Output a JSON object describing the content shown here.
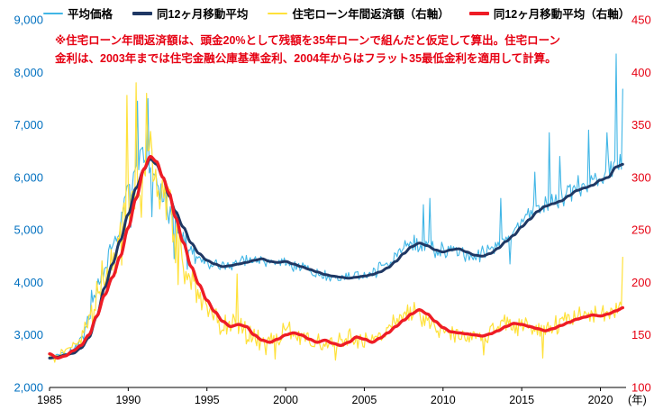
{
  "note": {
    "line1": "※住宅ローン年間返済額は、頭金20%として残額を35年ローンで組んだと仮定して算出。住宅ローン",
    "line2": "金利は、2003年までは住宅金融公庫基準金利、2004年からはフラット35最低金利を適用して計算。",
    "color": "#e60012"
  },
  "chart_data": {
    "type": "line",
    "noise_seed": 9,
    "x_axis": {
      "range": [
        1985,
        2021.63
      ],
      "ticks": [
        1985,
        1990,
        1995,
        2000,
        2005,
        2010,
        2015,
        2020
      ],
      "unit_label": "(年)",
      "color": "#000000"
    },
    "y_left": {
      "range": [
        2000,
        9000
      ],
      "tick_values": [
        2000,
        3000,
        4000,
        5000,
        6000,
        7000,
        8000,
        9000
      ],
      "tick_labels": [
        "2,000",
        "3,000",
        "4,000",
        "5,000",
        "6,000",
        "7,000",
        "8,000",
        "9,000"
      ],
      "color": "#0070c0"
    },
    "y_right": {
      "range": [
        100,
        450
      ],
      "tick_values": [
        100,
        150,
        200,
        250,
        300,
        350,
        400,
        450
      ],
      "tick_labels": [
        "100",
        "150",
        "200",
        "250",
        "300",
        "350",
        "400",
        "450"
      ],
      "color": "#e60012"
    },
    "series": [
      {
        "name": "平均価格",
        "slug": "avg-price",
        "axis": "left",
        "color": "#41b6e6",
        "stroke_width": 1.1,
        "style": "noisy-monthly",
        "derived_from": "同12ヶ月移動平均",
        "lead_years": 0.4,
        "clamp": [
          2330,
          8460
        ],
        "noise_amp_points": [
          [
            1985,
            60
          ],
          [
            1986.5,
            90
          ],
          [
            1987.5,
            200
          ],
          [
            1988.5,
            320
          ],
          [
            1990,
            380
          ],
          [
            1991.5,
            380
          ],
          [
            1992.5,
            320
          ],
          [
            1994,
            220
          ],
          [
            1995,
            150
          ],
          [
            1997,
            140
          ],
          [
            2000,
            140
          ],
          [
            2003,
            130
          ],
          [
            2005,
            140
          ],
          [
            2007,
            180
          ],
          [
            2008.5,
            220
          ],
          [
            2010,
            170
          ],
          [
            2012,
            150
          ],
          [
            2013,
            170
          ],
          [
            2015,
            200
          ],
          [
            2017,
            230
          ],
          [
            2019,
            260
          ],
          [
            2020,
            280
          ],
          [
            2021.45,
            300
          ]
        ],
        "spikes": [
          [
            1987.67,
            3850
          ],
          [
            1990.17,
            5050
          ],
          [
            1990.58,
            7450
          ],
          [
            1991.25,
            7500
          ],
          [
            1991.5,
            5250
          ],
          [
            1992.9,
            4450
          ],
          [
            1993.75,
            4250
          ],
          [
            2008.75,
            5480
          ],
          [
            2009.17,
            5600
          ],
          [
            2013.67,
            5600
          ],
          [
            2014.25,
            4350
          ],
          [
            2015.83,
            6100
          ],
          [
            2016.75,
            6850
          ],
          [
            2017.42,
            6400
          ],
          [
            2019.25,
            6900
          ],
          [
            2020.42,
            6850
          ],
          [
            2021.0,
            8350
          ],
          [
            2021.2,
            6150
          ],
          [
            2021.42,
            7680
          ]
        ]
      },
      {
        "name": "同12ヶ月移動平均",
        "slug": "avg-price-12mo-ma",
        "axis": "left",
        "color": "#1f3864",
        "stroke_width": 3,
        "style": "smooth",
        "points": [
          [
            1985,
            2560
          ],
          [
            1985.5,
            2580
          ],
          [
            1986,
            2620
          ],
          [
            1986.5,
            2650
          ],
          [
            1987,
            2750
          ],
          [
            1987.5,
            2950
          ],
          [
            1988,
            3350
          ],
          [
            1988.5,
            3900
          ],
          [
            1989,
            4350
          ],
          [
            1989.5,
            4800
          ],
          [
            1990,
            5300
          ],
          [
            1990.5,
            5800
          ],
          [
            1991,
            6150
          ],
          [
            1991.4,
            6350
          ],
          [
            1991.8,
            6250
          ],
          [
            1992.2,
            6000
          ],
          [
            1992.6,
            5650
          ],
          [
            1993,
            5350
          ],
          [
            1993.5,
            5050
          ],
          [
            1994,
            4750
          ],
          [
            1994.5,
            4550
          ],
          [
            1995,
            4420
          ],
          [
            1995.5,
            4350
          ],
          [
            1996,
            4300
          ],
          [
            1996.5,
            4320
          ],
          [
            1997,
            4350
          ],
          [
            1997.5,
            4380
          ],
          [
            1998,
            4420
          ],
          [
            1998.5,
            4450
          ],
          [
            1999,
            4400
          ],
          [
            1999.5,
            4380
          ],
          [
            2000,
            4400
          ],
          [
            2000.5,
            4350
          ],
          [
            2001,
            4300
          ],
          [
            2001.5,
            4250
          ],
          [
            2002,
            4200
          ],
          [
            2002.5,
            4150
          ],
          [
            2003,
            4120
          ],
          [
            2003.5,
            4100
          ],
          [
            2004,
            4080
          ],
          [
            2004.5,
            4100
          ],
          [
            2005,
            4120
          ],
          [
            2005.5,
            4150
          ],
          [
            2006,
            4200
          ],
          [
            2006.5,
            4280
          ],
          [
            2007,
            4400
          ],
          [
            2007.5,
            4550
          ],
          [
            2008,
            4680
          ],
          [
            2008.5,
            4750
          ],
          [
            2009,
            4700
          ],
          [
            2009.5,
            4620
          ],
          [
            2010,
            4580
          ],
          [
            2010.5,
            4620
          ],
          [
            2011,
            4640
          ],
          [
            2011.5,
            4580
          ],
          [
            2012,
            4520
          ],
          [
            2012.5,
            4500
          ],
          [
            2013,
            4550
          ],
          [
            2013.5,
            4650
          ],
          [
            2014,
            4780
          ],
          [
            2014.5,
            4900
          ],
          [
            2015,
            5060
          ],
          [
            2015.5,
            5200
          ],
          [
            2016,
            5350
          ],
          [
            2016.5,
            5450
          ],
          [
            2017,
            5500
          ],
          [
            2017.5,
            5550
          ],
          [
            2018,
            5650
          ],
          [
            2018.5,
            5750
          ],
          [
            2019,
            5800
          ],
          [
            2019.5,
            5850
          ],
          [
            2020,
            5950
          ],
          [
            2020.5,
            6000
          ],
          [
            2021,
            6200
          ],
          [
            2021.45,
            6250
          ]
        ]
      },
      {
        "name": "住宅ローン年間返済額（右軸）",
        "slug": "loan-annual-payment",
        "axis": "right",
        "color": "#ffe13a",
        "stroke_width": 1.2,
        "style": "noisy-monthly",
        "derived_from": "同12ヶ月移動平均（右軸）",
        "lead_years": 0.4,
        "clamp": [
          116,
          400
        ],
        "noise_amp_points": [
          [
            1985,
            7
          ],
          [
            1986.5,
            9
          ],
          [
            1987.5,
            18
          ],
          [
            1988.5,
            30
          ],
          [
            1990,
            40
          ],
          [
            1991.5,
            40
          ],
          [
            1992.5,
            32
          ],
          [
            1994,
            25
          ],
          [
            1995,
            18
          ],
          [
            1997,
            14
          ],
          [
            2000,
            13
          ],
          [
            2003,
            12
          ],
          [
            2005,
            12
          ],
          [
            2007,
            13
          ],
          [
            2008.5,
            13
          ],
          [
            2010,
            12
          ],
          [
            2012,
            10
          ],
          [
            2013,
            11
          ],
          [
            2015,
            12
          ],
          [
            2017,
            11
          ],
          [
            2019,
            10
          ],
          [
            2020,
            11
          ],
          [
            2021.45,
            14
          ]
        ],
        "spikes": [
          [
            1989.92,
            378
          ],
          [
            1990.5,
            390
          ],
          [
            1990.83,
            262
          ],
          [
            1991.17,
            380
          ],
          [
            1993.2,
            198
          ],
          [
            1996.9,
            208
          ],
          [
            1999.3,
            127
          ],
          [
            2003.2,
            126
          ],
          [
            2012.6,
            131
          ],
          [
            2016.3,
            128
          ],
          [
            2021.42,
            224
          ]
        ]
      },
      {
        "name": "同12ヶ月移動平均（右軸）",
        "slug": "loan-payment-12mo-ma",
        "axis": "right",
        "color": "#ee1c25",
        "stroke_width": 3.4,
        "style": "smooth",
        "points": [
          [
            1985,
            132
          ],
          [
            1985.5,
            128
          ],
          [
            1986,
            130
          ],
          [
            1986.5,
            135
          ],
          [
            1987,
            140
          ],
          [
            1987.5,
            150
          ],
          [
            1988,
            168
          ],
          [
            1988.5,
            188
          ],
          [
            1989,
            205
          ],
          [
            1989.5,
            225
          ],
          [
            1990,
            252
          ],
          [
            1990.5,
            280
          ],
          [
            1991,
            308
          ],
          [
            1991.4,
            320
          ],
          [
            1991.8,
            315
          ],
          [
            1992.2,
            300
          ],
          [
            1992.6,
            285
          ],
          [
            1993,
            262
          ],
          [
            1993.5,
            238
          ],
          [
            1994,
            215
          ],
          [
            1994.5,
            198
          ],
          [
            1995,
            183
          ],
          [
            1995.5,
            172
          ],
          [
            1996,
            163
          ],
          [
            1996.5,
            158
          ],
          [
            1997,
            160
          ],
          [
            1997.5,
            158
          ],
          [
            1998,
            150
          ],
          [
            1998.5,
            145
          ],
          [
            1999,
            143
          ],
          [
            1999.5,
            146
          ],
          [
            2000,
            150
          ],
          [
            2000.5,
            152
          ],
          [
            2001,
            150
          ],
          [
            2001.5,
            146
          ],
          [
            2002,
            143
          ],
          [
            2002.5,
            145
          ],
          [
            2003,
            142
          ],
          [
            2003.5,
            140
          ],
          [
            2004,
            143
          ],
          [
            2004.5,
            148
          ],
          [
            2005,
            146
          ],
          [
            2005.5,
            143
          ],
          [
            2006,
            147
          ],
          [
            2006.5,
            152
          ],
          [
            2007,
            158
          ],
          [
            2007.5,
            164
          ],
          [
            2008,
            170
          ],
          [
            2008.5,
            174
          ],
          [
            2009,
            170
          ],
          [
            2009.5,
            163
          ],
          [
            2010,
            157
          ],
          [
            2010.5,
            153
          ],
          [
            2011,
            152
          ],
          [
            2011.5,
            151
          ],
          [
            2012,
            150
          ],
          [
            2012.5,
            149
          ],
          [
            2013,
            151
          ],
          [
            2013.5,
            154
          ],
          [
            2014,
            158
          ],
          [
            2014.5,
            161
          ],
          [
            2015,
            160
          ],
          [
            2015.5,
            158
          ],
          [
            2016,
            156
          ],
          [
            2016.5,
            154
          ],
          [
            2017,
            156
          ],
          [
            2017.5,
            159
          ],
          [
            2018,
            162
          ],
          [
            2018.5,
            165
          ],
          [
            2019,
            167
          ],
          [
            2019.5,
            169
          ],
          [
            2020,
            168
          ],
          [
            2020.5,
            170
          ],
          [
            2021,
            173
          ],
          [
            2021.45,
            176
          ]
        ]
      }
    ]
  }
}
